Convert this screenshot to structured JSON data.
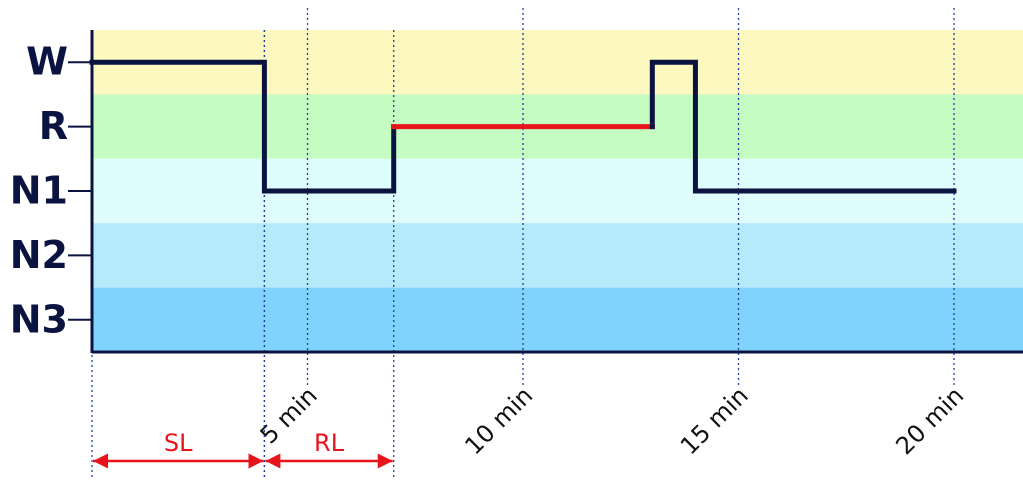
{
  "chart_data": {
    "type": "line",
    "xlim": [
      0,
      21.6
    ],
    "ylim": [
      -0.5,
      4.5
    ],
    "yticks": [
      {
        "value": 4,
        "label": "W"
      },
      {
        "value": 3,
        "label": "R"
      },
      {
        "value": 2,
        "label": "N1"
      },
      {
        "value": 1,
        "label": "N2"
      },
      {
        "value": 0,
        "label": "N3"
      }
    ],
    "band_colors": [
      "#fcf8bf",
      "#c4fcc2",
      "#defdfc",
      "#b5eafa",
      "#80d3fd"
    ],
    "xticks": [
      {
        "value": 5,
        "label": "5 min"
      },
      {
        "value": 10,
        "label": "10 min"
      },
      {
        "value": 15,
        "label": "15 min"
      },
      {
        "value": 20,
        "label": "20 min"
      }
    ],
    "series": [
      {
        "color": "#0b1440",
        "x": [
          0,
          4,
          4,
          7,
          7
        ],
        "values": [
          4,
          4,
          2,
          2,
          3
        ]
      },
      {
        "color": "#e8141c",
        "x": [
          7,
          13
        ],
        "values": [
          3,
          3
        ]
      },
      {
        "color": "#0b1440",
        "x": [
          13,
          13,
          14,
          14,
          20
        ],
        "values": [
          3,
          4,
          4,
          2,
          2
        ]
      }
    ],
    "annotations": [
      {
        "text": "SL",
        "x": [
          0,
          4
        ],
        "color": "#e8141c"
      },
      {
        "text": "RL",
        "x": [
          4,
          7
        ],
        "color": "#e8141c"
      }
    ]
  }
}
